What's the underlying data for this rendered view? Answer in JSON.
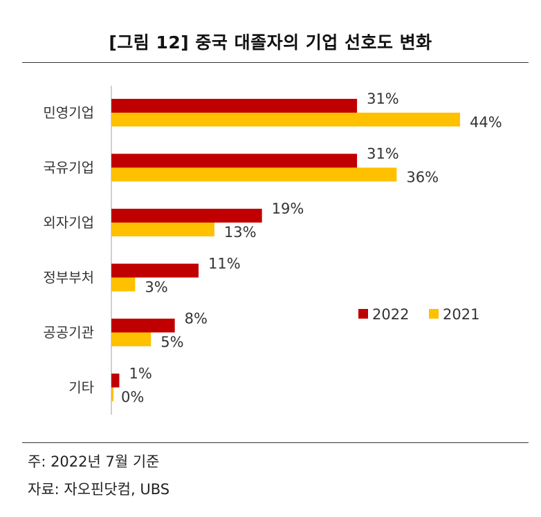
{
  "title": "[그림 12] 중국 대졸자의 기업 선호도 변화",
  "footnote": "주: 2022년 7월 기준",
  "source": "자료: 자오핀닷컴, UBS",
  "chart_data": {
    "type": "bar",
    "orientation": "horizontal",
    "categories": [
      "민영기업",
      "국유기업",
      "외자기업",
      "정부부처",
      "공공기관",
      "기타"
    ],
    "series": [
      {
        "name": "2022",
        "values": [
          31,
          31,
          19,
          11,
          8,
          1
        ],
        "labels": [
          "31%",
          "31%",
          "19%",
          "11%",
          "8%",
          "1%"
        ],
        "color": "#C00000"
      },
      {
        "name": "2021",
        "values": [
          44,
          36,
          13,
          3,
          5,
          0
        ],
        "labels": [
          "44%",
          "36%",
          "13%",
          "3%",
          "5%",
          "0%"
        ],
        "color": "#FFC000"
      }
    ],
    "unit": "%",
    "xlim": [
      0,
      45
    ],
    "grid": false,
    "legend": "right"
  }
}
